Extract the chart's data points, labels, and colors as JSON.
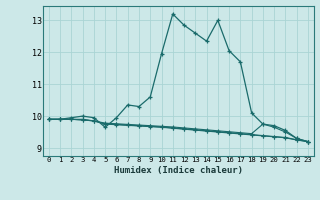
{
  "title": "",
  "xlabel": "Humidex (Indice chaleur)",
  "ylabel": "",
  "bg_color": "#cce8e8",
  "line_color": "#1a6b6b",
  "grid_color": "#aad4d4",
  "xlim": [
    -0.5,
    23.5
  ],
  "ylim": [
    8.75,
    13.45
  ],
  "yticks": [
    9,
    10,
    11,
    12,
    13
  ],
  "xticks": [
    0,
    1,
    2,
    3,
    4,
    5,
    6,
    7,
    8,
    9,
    10,
    11,
    12,
    13,
    14,
    15,
    16,
    17,
    18,
    19,
    20,
    21,
    22,
    23
  ],
  "series": [
    [
      0,
      9.9
    ],
    [
      1,
      9.9
    ],
    [
      2,
      9.95
    ],
    [
      3,
      10.0
    ],
    [
      4,
      9.95
    ],
    [
      5,
      9.65
    ],
    [
      6,
      9.95
    ],
    [
      7,
      10.35
    ],
    [
      8,
      10.3
    ],
    [
      9,
      10.6
    ],
    [
      10,
      11.95
    ],
    [
      11,
      13.2
    ],
    [
      12,
      12.85
    ],
    [
      13,
      12.6
    ],
    [
      14,
      12.35
    ],
    [
      15,
      13.0
    ],
    [
      16,
      12.05
    ],
    [
      17,
      11.7
    ],
    [
      18,
      10.1
    ],
    [
      19,
      9.75
    ],
    [
      20,
      9.7
    ],
    [
      21,
      9.55
    ],
    [
      22,
      9.3
    ],
    [
      23,
      9.2
    ]
  ],
  "series2": [
    [
      0,
      9.9
    ],
    [
      1,
      9.9
    ],
    [
      2,
      9.9
    ],
    [
      3,
      9.9
    ],
    [
      4,
      9.85
    ],
    [
      5,
      9.78
    ],
    [
      6,
      9.76
    ],
    [
      7,
      9.74
    ],
    [
      8,
      9.72
    ],
    [
      9,
      9.7
    ],
    [
      10,
      9.68
    ],
    [
      11,
      9.66
    ],
    [
      12,
      9.63
    ],
    [
      13,
      9.6
    ],
    [
      14,
      9.57
    ],
    [
      15,
      9.54
    ],
    [
      16,
      9.51
    ],
    [
      17,
      9.48
    ],
    [
      18,
      9.45
    ],
    [
      19,
      9.75
    ],
    [
      20,
      9.65
    ],
    [
      21,
      9.5
    ],
    [
      22,
      9.3
    ],
    [
      23,
      9.2
    ]
  ],
  "series3": [
    [
      0,
      9.9
    ],
    [
      1,
      9.9
    ],
    [
      2,
      9.9
    ],
    [
      3,
      9.88
    ],
    [
      4,
      9.85
    ],
    [
      5,
      9.75
    ],
    [
      6,
      9.73
    ],
    [
      7,
      9.71
    ],
    [
      8,
      9.69
    ],
    [
      9,
      9.67
    ],
    [
      10,
      9.65
    ],
    [
      11,
      9.62
    ],
    [
      12,
      9.59
    ],
    [
      13,
      9.56
    ],
    [
      14,
      9.53
    ],
    [
      15,
      9.5
    ],
    [
      16,
      9.47
    ],
    [
      17,
      9.44
    ],
    [
      18,
      9.41
    ],
    [
      19,
      9.38
    ],
    [
      20,
      9.35
    ],
    [
      21,
      9.32
    ],
    [
      22,
      9.25
    ],
    [
      23,
      9.2
    ]
  ],
  "series4": [
    [
      0,
      9.9
    ],
    [
      1,
      9.9
    ],
    [
      2,
      9.9
    ],
    [
      3,
      9.88
    ],
    [
      4,
      9.85
    ],
    [
      5,
      9.76
    ],
    [
      6,
      9.74
    ],
    [
      7,
      9.72
    ],
    [
      8,
      9.7
    ],
    [
      9,
      9.68
    ],
    [
      10,
      9.66
    ],
    [
      11,
      9.63
    ],
    [
      12,
      9.6
    ],
    [
      13,
      9.57
    ],
    [
      14,
      9.54
    ],
    [
      15,
      9.51
    ],
    [
      16,
      9.48
    ],
    [
      17,
      9.45
    ],
    [
      18,
      9.42
    ],
    [
      19,
      9.39
    ],
    [
      20,
      9.36
    ],
    [
      21,
      9.33
    ],
    [
      22,
      9.26
    ],
    [
      23,
      9.2
    ]
  ]
}
